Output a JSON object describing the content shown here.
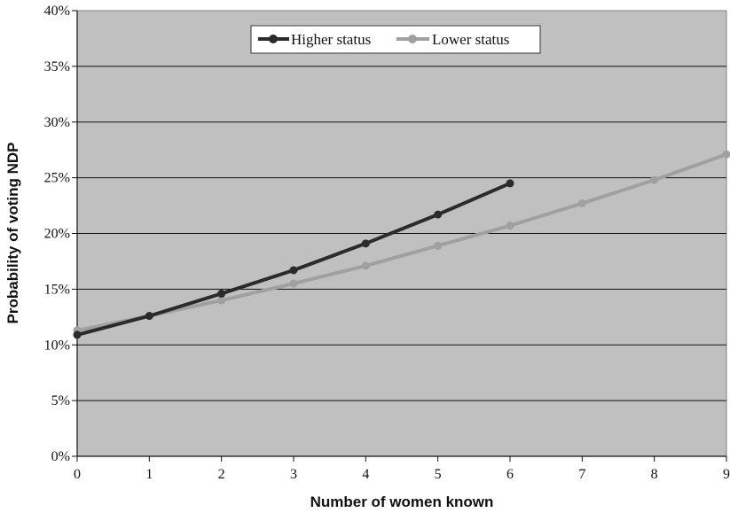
{
  "chart_data": {
    "type": "line",
    "title": "",
    "xlabel": "Number of women known",
    "ylabel": "Probability of voting NDP",
    "xlim": [
      0,
      9
    ],
    "ylim": [
      0,
      40
    ],
    "x_ticks": [
      "0",
      "1",
      "2",
      "3",
      "4",
      "5",
      "6",
      "7",
      "8",
      "9"
    ],
    "y_ticks": [
      "0%",
      "5%",
      "10%",
      "15%",
      "20%",
      "25%",
      "30%",
      "35%",
      "40%"
    ],
    "grid": "horizontal",
    "legend_position": "top-center",
    "plot_background": "#c0c0c0",
    "series": [
      {
        "name": "Higher status",
        "color": "#2b2b2b",
        "x": [
          0,
          1,
          2,
          3,
          4,
          5,
          6
        ],
        "y": [
          10.9,
          12.6,
          14.6,
          16.7,
          19.1,
          21.7,
          24.5
        ]
      },
      {
        "name": "Lower status",
        "color": "#a0a0a0",
        "x": [
          0,
          1,
          2,
          3,
          4,
          5,
          6,
          7,
          8,
          9
        ],
        "y": [
          11.3,
          12.6,
          14.0,
          15.5,
          17.1,
          18.9,
          20.7,
          22.7,
          24.8,
          27.1
        ]
      }
    ]
  }
}
